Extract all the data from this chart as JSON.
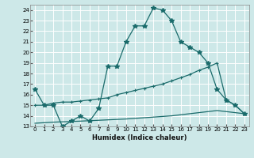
{
  "xlabel": "Humidex (Indice chaleur)",
  "bg_color": "#cde8e8",
  "line_color": "#1a6b6b",
  "grid_color": "#ffffff",
  "xlim": [
    -0.5,
    23.5
  ],
  "ylim": [
    13,
    24.5
  ],
  "xticks": [
    0,
    1,
    2,
    3,
    4,
    5,
    6,
    7,
    8,
    9,
    10,
    11,
    12,
    13,
    14,
    15,
    16,
    17,
    18,
    19,
    20,
    21,
    22,
    23
  ],
  "yticks": [
    13,
    14,
    15,
    16,
    17,
    18,
    19,
    20,
    21,
    22,
    23,
    24
  ],
  "line1_x": [
    0,
    1,
    2,
    3,
    4,
    5,
    6,
    7,
    8,
    9,
    10,
    11,
    12,
    13,
    14,
    15,
    16,
    17,
    18,
    19,
    20,
    21,
    22,
    23
  ],
  "line1_y": [
    16.5,
    15,
    15,
    13,
    13.5,
    14,
    13.5,
    14.7,
    18.7,
    18.7,
    21,
    22.5,
    22.5,
    24.2,
    24,
    23,
    21,
    20.5,
    20,
    19,
    16.5,
    15.5,
    15,
    14.2
  ],
  "line2_x": [
    0,
    1,
    2,
    3,
    4,
    5,
    6,
    7,
    8,
    9,
    10,
    11,
    12,
    13,
    14,
    15,
    16,
    17,
    18,
    19,
    20,
    21,
    22,
    23
  ],
  "line2_y": [
    15,
    15,
    15.2,
    15.3,
    15.3,
    15.4,
    15.5,
    15.6,
    15.7,
    16,
    16.2,
    16.4,
    16.6,
    16.8,
    17.0,
    17.3,
    17.6,
    17.9,
    18.3,
    18.6,
    19.0,
    15.5,
    15,
    14.2
  ],
  "line3_x": [
    0,
    2,
    5,
    10,
    15,
    20,
    23
  ],
  "line3_y": [
    13.3,
    13.4,
    13.5,
    13.7,
    14.0,
    14.5,
    14.2
  ]
}
